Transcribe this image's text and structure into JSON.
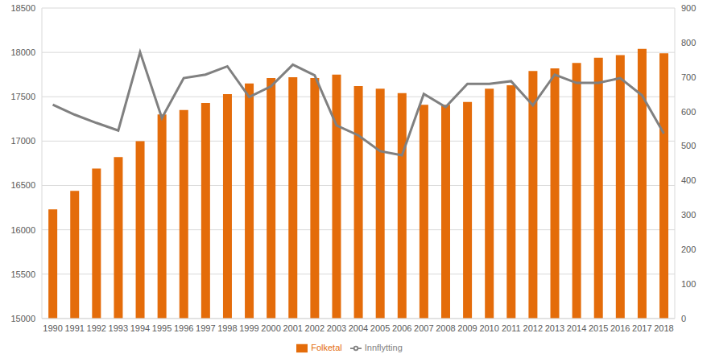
{
  "chart_data": {
    "type": "bar",
    "categories": [
      "1990",
      "1991",
      "1992",
      "1993",
      "1994",
      "1995",
      "1996",
      "1997",
      "1998",
      "1999",
      "2000",
      "2001",
      "2002",
      "2003",
      "2004",
      "2005",
      "2006",
      "2007",
      "2008",
      "2009",
      "2010",
      "2011",
      "2012",
      "2013",
      "2014",
      "2015",
      "2016",
      "2017",
      "2018"
    ],
    "series": [
      {
        "name": "Folketal",
        "type": "bar",
        "color": "#e46c0a",
        "values": [
          16230,
          16440,
          16690,
          16820,
          17000,
          17300,
          17350,
          17430,
          17530,
          17650,
          17710,
          17720,
          17710,
          17750,
          17620,
          17590,
          17540,
          17410,
          17410,
          17440,
          17590,
          17630,
          17790,
          17820,
          17880,
          17940,
          17970,
          18040,
          17990
        ]
      },
      {
        "name": "Innflytting",
        "type": "line",
        "axis": "y2",
        "color": "#808080",
        "values": [
          620,
          591,
          567,
          545,
          772,
          581,
          697,
          707,
          731,
          642,
          673,
          736,
          705,
          560,
          531,
          485,
          473,
          651,
          613,
          680,
          680,
          688,
          618,
          707,
          683,
          683,
          697,
          647,
          536
        ]
      }
    ],
    "ylim": [
      15000,
      18500
    ],
    "yticks": [
      15000,
      15500,
      16000,
      16500,
      17000,
      17500,
      18000,
      18500
    ],
    "y2lim": [
      0,
      900
    ],
    "y2ticks": [
      0,
      100,
      200,
      300,
      400,
      500,
      600,
      700,
      800,
      900
    ],
    "grid": true,
    "legend": "bottom"
  }
}
